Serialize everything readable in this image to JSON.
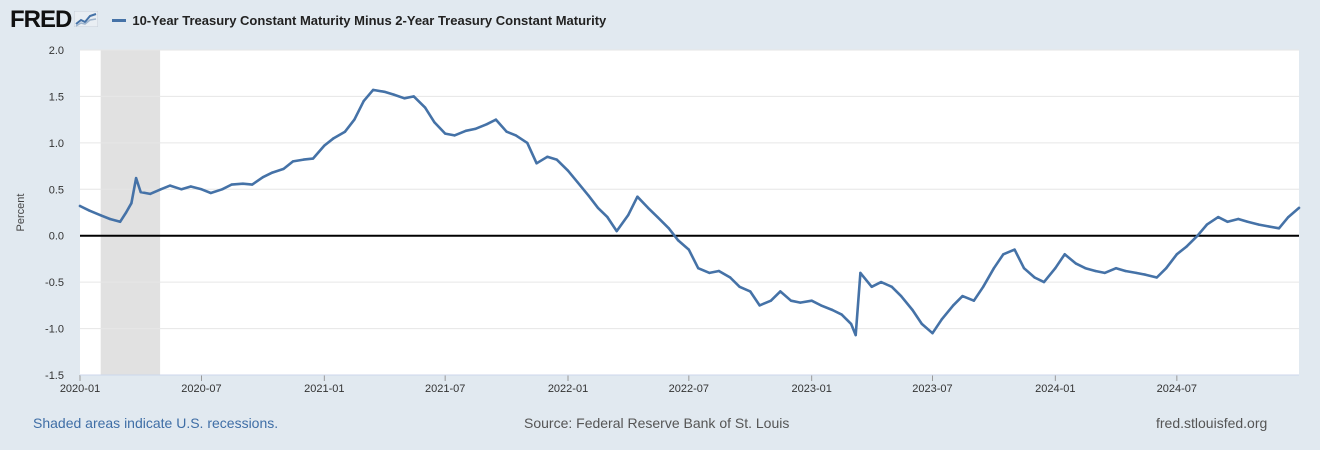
{
  "header": {
    "logo": "FRED",
    "logo_icon": "line-chart-icon"
  },
  "chart_data": {
    "type": "line",
    "title": "",
    "xlabel": "",
    "ylabel": "Percent",
    "ylim": [
      -1.5,
      2.0
    ],
    "xlim": [
      "2020-01-01",
      "2024-12-31"
    ],
    "yticks": [
      2.0,
      1.5,
      1.0,
      0.5,
      0.0,
      -0.5,
      -1.0,
      -1.5
    ],
    "ytick_labels": [
      "2.0",
      "1.5",
      "1.0",
      "0.5",
      "0.0",
      "-0.5",
      "-1.0",
      "-1.5"
    ],
    "xticks": [
      "2020-01-01",
      "2020-07-01",
      "2021-01-01",
      "2021-07-01",
      "2022-01-01",
      "2022-07-01",
      "2023-01-01",
      "2023-07-01",
      "2024-01-01",
      "2024-07-01"
    ],
    "xtick_labels": [
      "2020-01",
      "2020-07",
      "2021-01",
      "2021-07",
      "2022-01",
      "2022-07",
      "2023-01",
      "2023-07",
      "2024-01",
      "2024-07"
    ],
    "grid": true,
    "zero_line": true,
    "legend_position": "top-left",
    "recessions": [
      {
        "start": "2020-02-01",
        "end": "2020-04-30"
      }
    ],
    "colors": {
      "series": "#4572a7",
      "recession": "#e1e1e1",
      "background": "#e1e9f0",
      "plot": "#ffffff",
      "zero": "#000000"
    },
    "series": [
      {
        "name": "10-Year Treasury Constant Maturity Minus 2-Year Treasury Constant Maturity",
        "x": [
          "2020-01-01",
          "2020-01-15",
          "2020-02-01",
          "2020-02-15",
          "2020-03-01",
          "2020-03-10",
          "2020-03-18",
          "2020-03-25",
          "2020-04-01",
          "2020-04-15",
          "2020-05-01",
          "2020-05-15",
          "2020-06-01",
          "2020-06-15",
          "2020-07-01",
          "2020-07-15",
          "2020-08-01",
          "2020-08-15",
          "2020-09-01",
          "2020-09-15",
          "2020-10-01",
          "2020-10-15",
          "2020-11-01",
          "2020-11-15",
          "2020-12-01",
          "2020-12-15",
          "2021-01-01",
          "2021-01-15",
          "2021-02-01",
          "2021-02-15",
          "2021-03-01",
          "2021-03-15",
          "2021-04-01",
          "2021-04-15",
          "2021-05-01",
          "2021-05-15",
          "2021-06-01",
          "2021-06-15",
          "2021-07-01",
          "2021-07-15",
          "2021-08-01",
          "2021-08-15",
          "2021-09-01",
          "2021-09-15",
          "2021-10-01",
          "2021-10-15",
          "2021-11-01",
          "2021-11-15",
          "2021-12-01",
          "2021-12-15",
          "2022-01-01",
          "2022-01-15",
          "2022-02-01",
          "2022-02-15",
          "2022-03-01",
          "2022-03-15",
          "2022-04-01",
          "2022-04-15",
          "2022-05-01",
          "2022-05-15",
          "2022-06-01",
          "2022-06-15",
          "2022-07-01",
          "2022-07-15",
          "2022-08-01",
          "2022-08-15",
          "2022-09-01",
          "2022-09-15",
          "2022-10-01",
          "2022-10-15",
          "2022-11-01",
          "2022-11-15",
          "2022-12-01",
          "2022-12-15",
          "2023-01-01",
          "2023-01-15",
          "2023-02-01",
          "2023-02-15",
          "2023-03-01",
          "2023-03-08",
          "2023-03-15",
          "2023-04-01",
          "2023-04-15",
          "2023-05-01",
          "2023-05-15",
          "2023-06-01",
          "2023-06-15",
          "2023-07-01",
          "2023-07-15",
          "2023-08-01",
          "2023-08-15",
          "2023-09-01",
          "2023-09-15",
          "2023-10-01",
          "2023-10-15",
          "2023-11-01",
          "2023-11-15",
          "2023-12-01",
          "2023-12-15",
          "2024-01-01",
          "2024-01-15",
          "2024-02-01",
          "2024-02-15",
          "2024-03-01",
          "2024-03-15",
          "2024-04-01",
          "2024-04-15",
          "2024-05-01",
          "2024-05-15",
          "2024-06-01",
          "2024-06-15",
          "2024-07-01",
          "2024-07-15",
          "2024-08-01",
          "2024-08-15",
          "2024-09-01",
          "2024-09-15",
          "2024-10-01",
          "2024-10-15",
          "2024-11-01",
          "2024-11-15",
          "2024-12-01",
          "2024-12-15",
          "2024-12-31"
        ],
        "values": [
          0.32,
          0.27,
          0.22,
          0.18,
          0.15,
          0.25,
          0.35,
          0.62,
          0.47,
          0.45,
          0.5,
          0.54,
          0.5,
          0.53,
          0.5,
          0.46,
          0.5,
          0.55,
          0.56,
          0.55,
          0.63,
          0.68,
          0.72,
          0.8,
          0.82,
          0.83,
          0.97,
          1.05,
          1.12,
          1.25,
          1.45,
          1.57,
          1.55,
          1.52,
          1.48,
          1.5,
          1.38,
          1.22,
          1.1,
          1.08,
          1.13,
          1.15,
          1.2,
          1.25,
          1.12,
          1.08,
          1.0,
          0.78,
          0.85,
          0.82,
          0.7,
          0.58,
          0.43,
          0.3,
          0.2,
          0.05,
          0.22,
          0.42,
          0.3,
          0.2,
          0.08,
          -0.05,
          -0.15,
          -0.35,
          -0.4,
          -0.38,
          -0.45,
          -0.55,
          -0.6,
          -0.75,
          -0.7,
          -0.6,
          -0.7,
          -0.72,
          -0.7,
          -0.75,
          -0.8,
          -0.85,
          -0.95,
          -1.07,
          -0.4,
          -0.55,
          -0.5,
          -0.55,
          -0.65,
          -0.8,
          -0.95,
          -1.05,
          -0.9,
          -0.75,
          -0.65,
          -0.7,
          -0.55,
          -0.35,
          -0.2,
          -0.15,
          -0.35,
          -0.45,
          -0.5,
          -0.35,
          -0.2,
          -0.3,
          -0.35,
          -0.38,
          -0.4,
          -0.35,
          -0.38,
          -0.4,
          -0.42,
          -0.45,
          -0.35,
          -0.2,
          -0.12,
          0.0,
          0.12,
          0.2,
          0.15,
          0.18,
          0.15,
          0.12,
          0.1,
          0.08,
          0.2,
          0.3
        ]
      }
    ]
  },
  "footer": {
    "recession_note": "Shaded areas indicate U.S. recessions.",
    "source": "Source: Federal Reserve Bank of St. Louis",
    "site": "fred.stlouisfed.org"
  }
}
